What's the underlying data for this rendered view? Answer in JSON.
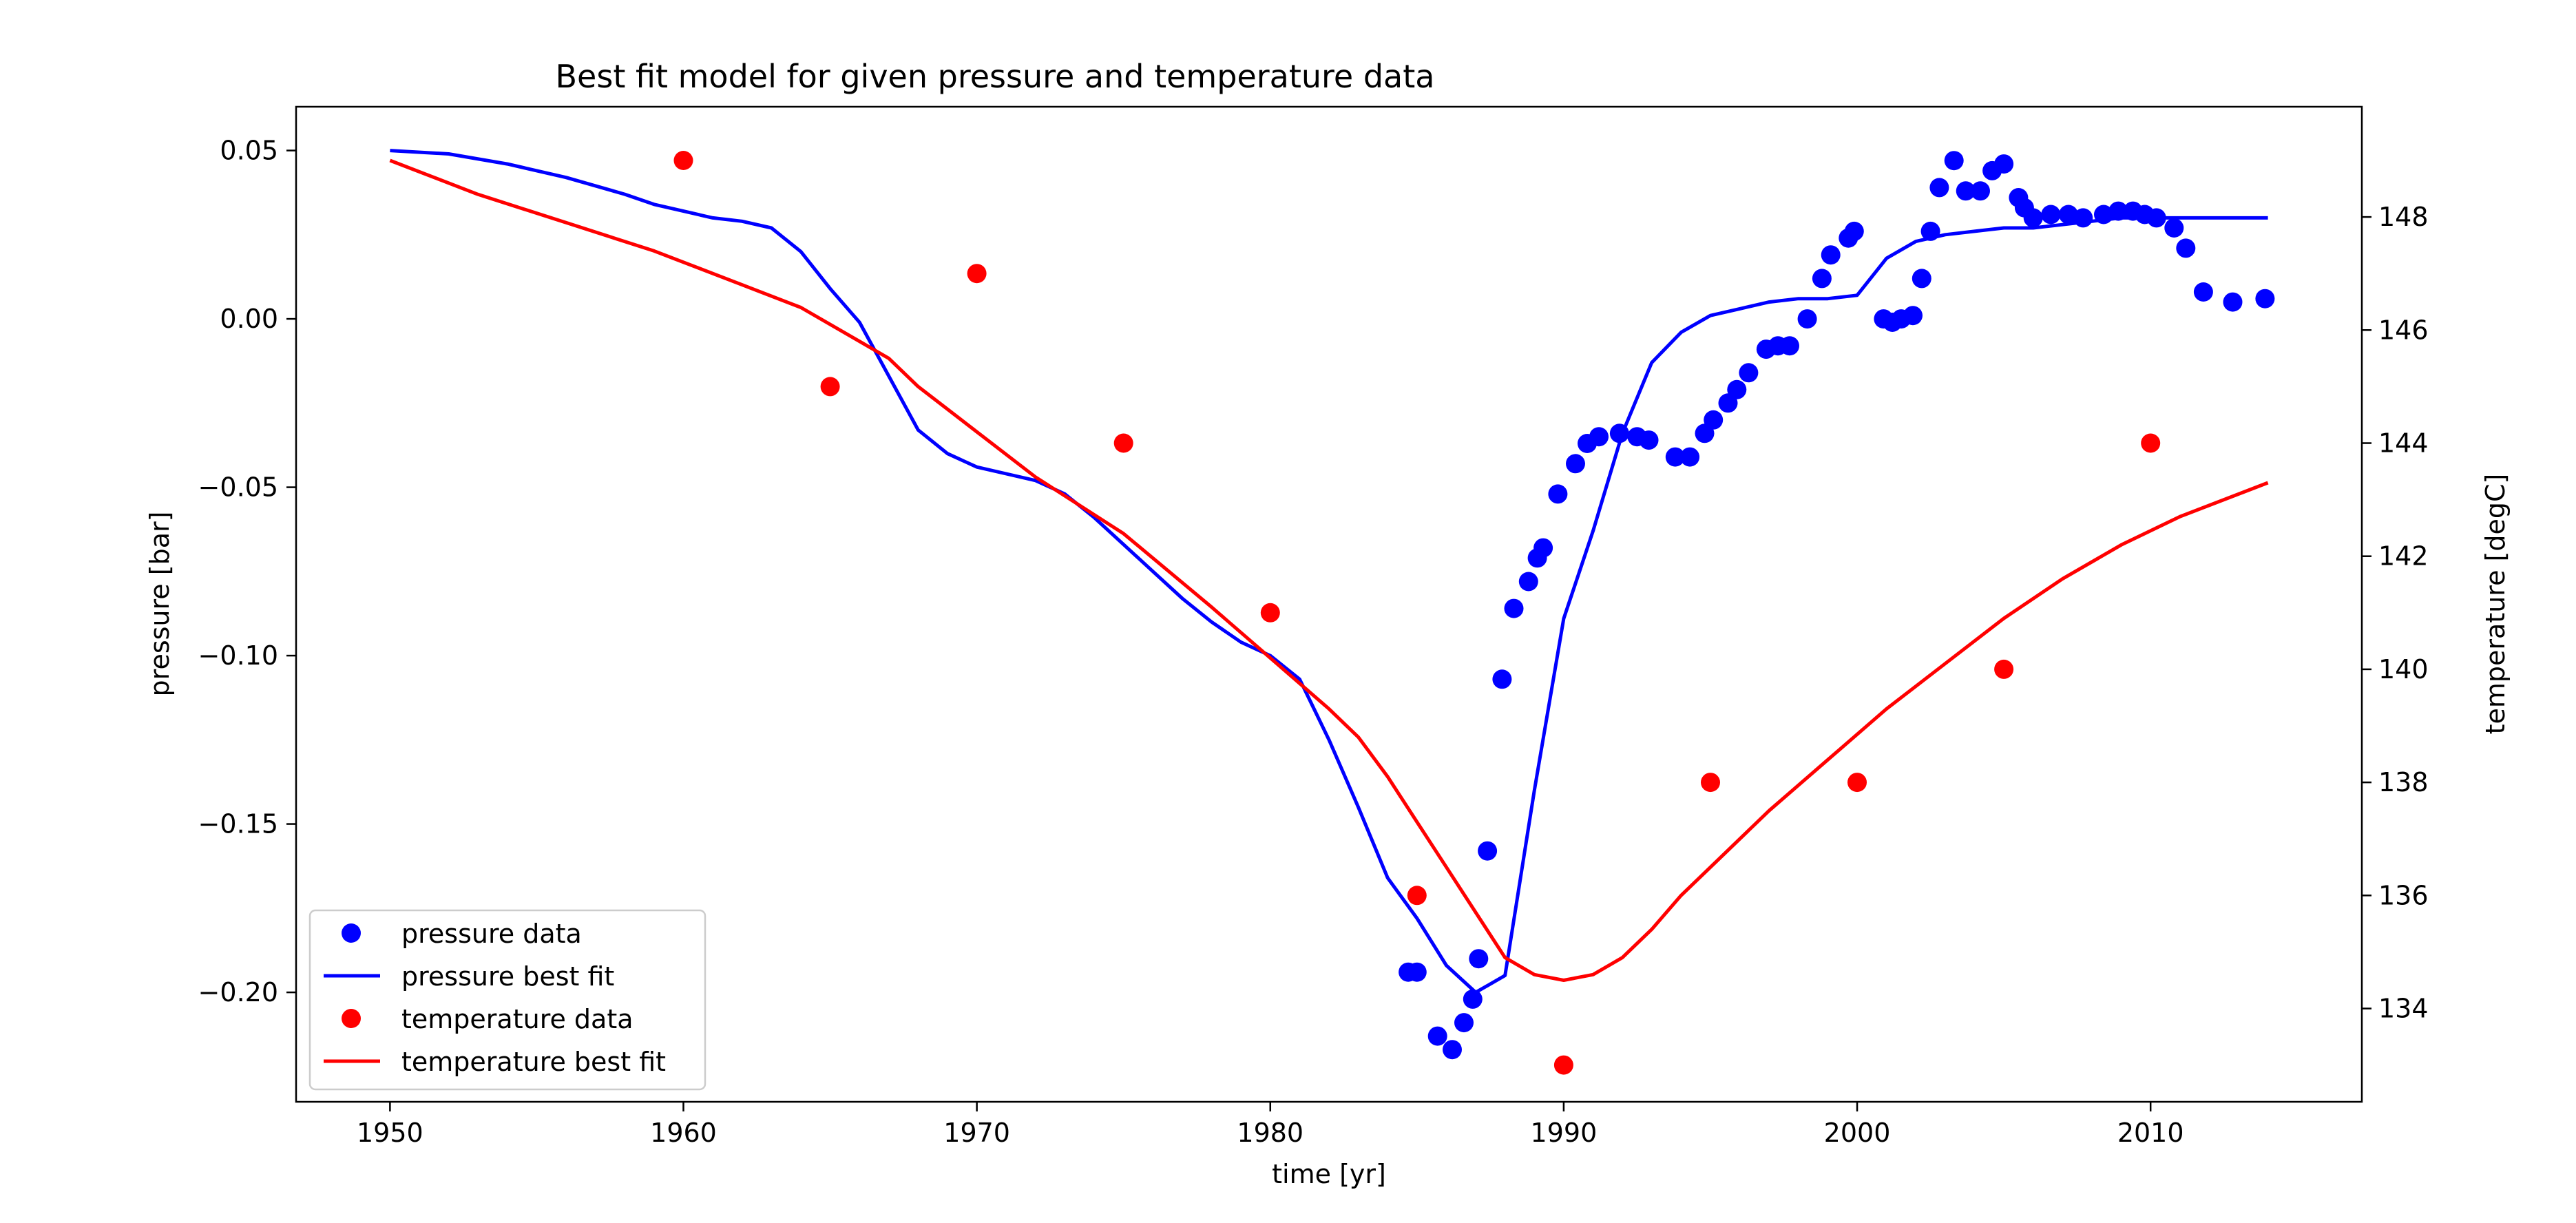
{
  "chart_data": {
    "type": "line",
    "title": "Best fit model for given pressure and temperature data",
    "xlabel": "time [yr]",
    "ylabel": "pressure [bar]",
    "y2label": "temperature [degC]",
    "xlim": [
      1946.8,
      2017.2
    ],
    "ylim": [
      -0.2325,
      0.063
    ],
    "y2lim": [
      132.35,
      149.95
    ],
    "xticks": [
      1950,
      1960,
      1970,
      1980,
      1990,
      2000,
      2010
    ],
    "yticks": [
      0.05,
      0.0,
      -0.05,
      -0.1,
      -0.15,
      -0.2
    ],
    "ytick_labels": [
      "0.05",
      "0.00",
      "−0.05",
      "−0.10",
      "−0.15",
      "−0.20"
    ],
    "y2ticks": [
      134,
      136,
      138,
      140,
      142,
      144,
      146,
      148
    ],
    "grid": false,
    "legend_position": "lower-left",
    "colors": {
      "pressure": "#0000ff",
      "temperature": "#ff0000"
    },
    "series": [
      {
        "name": "pressure data",
        "kind": "scatter",
        "axis": "left",
        "color": "#0000ff",
        "x": [
          1984.7,
          1985.0,
          1985.7,
          1986.2,
          1986.6,
          1986.9,
          1987.1,
          1987.4,
          1987.9,
          1988.3,
          1988.8,
          1989.1,
          1989.3,
          1989.8,
          1990.4,
          1990.8,
          1991.2,
          1991.9,
          1992.5,
          1992.9,
          1993.8,
          1994.3,
          1994.8,
          1995.1,
          1995.6,
          1995.9,
          1996.3,
          1996.9,
          1997.3,
          1997.7,
          1998.3,
          1998.8,
          1999.1,
          1999.7,
          1999.9,
          2000.9,
          2001.2,
          2001.5,
          2001.9,
          2002.2,
          2002.5,
          2002.8,
          2003.3,
          2003.7,
          2004.2,
          2004.6,
          2005.0,
          2005.5,
          2005.7,
          2006.0,
          2006.6,
          2007.2,
          2007.7,
          2008.4,
          2008.9,
          2009.4,
          2009.8,
          2010.2,
          2010.8,
          2011.2,
          2011.8,
          2012.8,
          2013.9
        ],
        "y": [
          -0.194,
          -0.194,
          -0.213,
          -0.217,
          -0.209,
          -0.202,
          -0.19,
          -0.158,
          -0.107,
          -0.086,
          -0.078,
          -0.071,
          -0.068,
          -0.052,
          -0.043,
          -0.037,
          -0.035,
          -0.034,
          -0.035,
          -0.036,
          -0.041,
          -0.041,
          -0.034,
          -0.03,
          -0.025,
          -0.021,
          -0.016,
          -0.009,
          -0.008,
          -0.008,
          0.0,
          0.012,
          0.019,
          0.024,
          0.026,
          0.0,
          -0.001,
          0.0,
          0.001,
          0.012,
          0.026,
          0.039,
          0.047,
          0.038,
          0.038,
          0.044,
          0.046,
          0.036,
          0.033,
          0.03,
          0.031,
          0.031,
          0.03,
          0.031,
          0.032,
          0.032,
          0.031,
          0.03,
          0.027,
          0.021,
          0.008,
          0.005,
          0.006
        ]
      },
      {
        "name": "pressure best fit",
        "kind": "line",
        "axis": "left",
        "color": "#0000ff",
        "x": [
          1950,
          1952,
          1954,
          1956,
          1958,
          1959,
          1960,
          1961,
          1962,
          1963,
          1964,
          1965,
          1966,
          1967,
          1968,
          1969,
          1970,
          1971,
          1972,
          1973,
          1974,
          1975,
          1976,
          1977,
          1978,
          1979,
          1980,
          1981,
          1982,
          1983,
          1984,
          1985,
          1986,
          1987,
          1988,
          1989,
          1990,
          1991,
          1992,
          1993,
          1994,
          1995,
          1996,
          1997,
          1998,
          1999,
          2000,
          2001,
          2002,
          2003,
          2004,
          2005,
          2006,
          2007,
          2008,
          2009,
          2010,
          2011,
          2012,
          2013,
          2014
        ],
        "y": [
          0.05,
          0.049,
          0.046,
          0.042,
          0.037,
          0.034,
          0.032,
          0.03,
          0.029,
          0.027,
          0.02,
          0.009,
          -0.001,
          -0.017,
          -0.033,
          -0.04,
          -0.044,
          -0.046,
          -0.048,
          -0.052,
          -0.059,
          -0.067,
          -0.075,
          -0.083,
          -0.09,
          -0.096,
          -0.1,
          -0.107,
          -0.125,
          -0.145,
          -0.166,
          -0.178,
          -0.192,
          -0.2,
          -0.195,
          -0.14,
          -0.089,
          -0.063,
          -0.034,
          -0.013,
          -0.004,
          0.001,
          0.003,
          0.005,
          0.006,
          0.006,
          0.007,
          0.018,
          0.023,
          0.025,
          0.026,
          0.027,
          0.027,
          0.028,
          0.029,
          0.03,
          0.03,
          0.03,
          0.03,
          0.03,
          0.03
        ]
      },
      {
        "name": "temperature data",
        "kind": "scatter",
        "axis": "right",
        "color": "#ff0000",
        "x": [
          1960,
          1965,
          1970,
          1975,
          1980,
          1985,
          1990,
          1995,
          2000,
          2005,
          2010
        ],
        "y": [
          149,
          145,
          147,
          144,
          141,
          136,
          133,
          138,
          138,
          140,
          144
        ]
      },
      {
        "name": "temperature best fit",
        "kind": "line",
        "axis": "right",
        "color": "#ff0000",
        "x": [
          1950,
          1953,
          1956,
          1959,
          1962,
          1964,
          1966,
          1967,
          1968,
          1970,
          1972,
          1975,
          1978,
          1980,
          1982,
          1983,
          1984,
          1985,
          1986,
          1987,
          1988,
          1989,
          1990,
          1991,
          1992,
          1993,
          1994,
          1995,
          1997,
          1999,
          2001,
          2003,
          2005,
          2007,
          2009,
          2011,
          2014
        ],
        "y": [
          149.0,
          148.4,
          147.9,
          147.4,
          146.8,
          146.4,
          145.8,
          145.5,
          145.0,
          144.2,
          143.4,
          142.4,
          141.1,
          140.2,
          139.3,
          138.8,
          138.1,
          137.3,
          136.5,
          135.7,
          134.9,
          134.6,
          134.5,
          134.6,
          134.9,
          135.4,
          136.0,
          136.5,
          137.5,
          138.4,
          139.3,
          140.1,
          140.9,
          141.6,
          142.2,
          142.7,
          143.3
        ]
      }
    ]
  }
}
